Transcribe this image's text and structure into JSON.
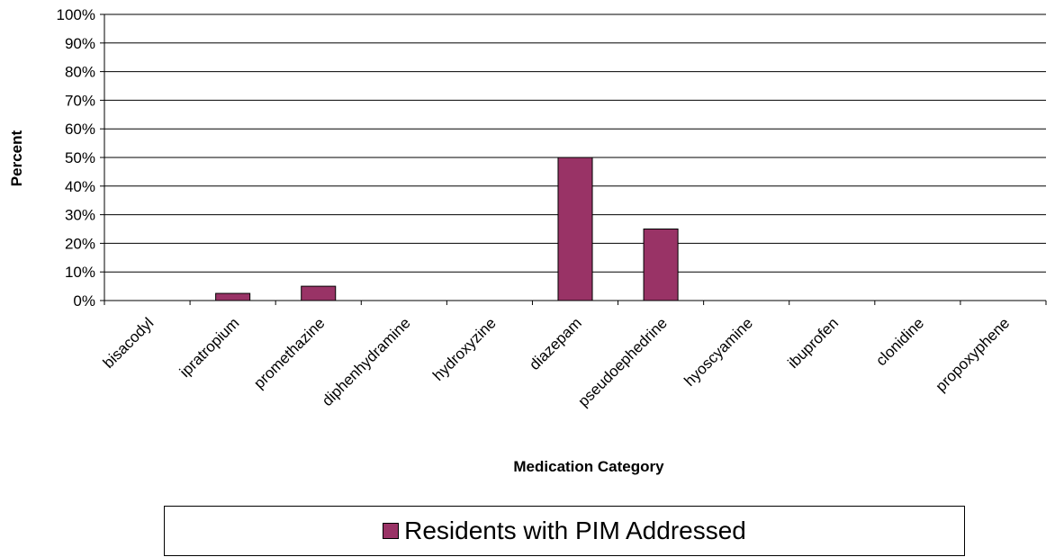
{
  "chart_data": {
    "type": "bar",
    "categories": [
      "bisacodyl",
      "ipratropium",
      "promethazine",
      "diphenhydramine",
      "hydroxyzine",
      "diazepam",
      "pseudoephedrine",
      "hyoscyamine",
      "ibuprofen",
      "clonidine",
      "propoxyphene"
    ],
    "series": [
      {
        "name": "Residents with PIM Addressed",
        "values": [
          0,
          2.5,
          5,
          0,
          0,
          50,
          25,
          0,
          0,
          0,
          0
        ],
        "color": "#993366"
      }
    ],
    "xlabel": "Medication Category",
    "ylabel": "Percent",
    "ylim": [
      0,
      100
    ],
    "yticks": [
      "0%",
      "10%",
      "20%",
      "30%",
      "40%",
      "50%",
      "60%",
      "70%",
      "80%",
      "90%",
      "100%"
    ],
    "grid": true,
    "legend_position": "bottom"
  }
}
